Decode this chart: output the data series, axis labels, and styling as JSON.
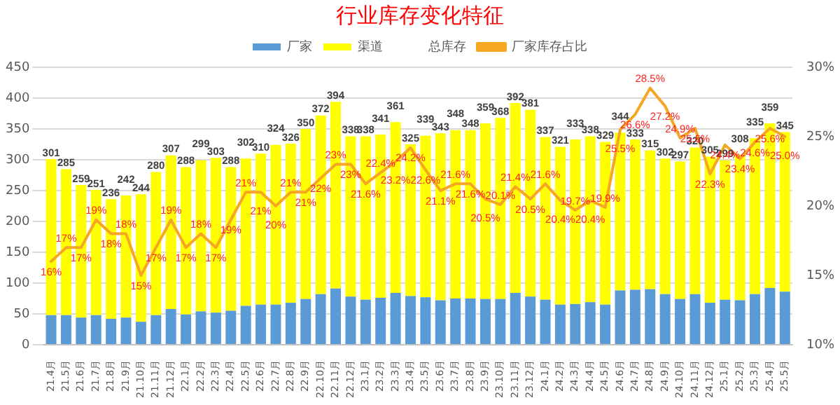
{
  "chart_data": {
    "type": "bar",
    "title": "行业库存变化特征",
    "categories": [
      "21.4月",
      "21.5月",
      "21.6月",
      "21.7月",
      "21.8月",
      "21.9月",
      "21.10月",
      "21.11月",
      "21.12月",
      "22.1月",
      "22.2月",
      "22.3月",
      "22.4月",
      "22.5月",
      "22.6月",
      "22.7月",
      "22.8月",
      "22.9月",
      "22.10月",
      "22.11月",
      "22.12月",
      "23.1月",
      "23.2月",
      "23.3月",
      "23.4月",
      "23.5月",
      "23.6月",
      "23.7月",
      "23.8月",
      "23.9月",
      "23.10月",
      "23.11月",
      "23.12月",
      "24.1月",
      "24.2月",
      "24.3月",
      "24.4月",
      "24.5月",
      "24.6月",
      "24.7月",
      "24.8月",
      "24.9月",
      "24.10月",
      "24.11月",
      "24.12月",
      "25.1月",
      "25.2月",
      "25.3月",
      "25.4月",
      "25.5月"
    ],
    "stacked": true,
    "series": [
      {
        "name": "厂家",
        "color": "#5b9bd5",
        "values": [
          48,
          48,
          44,
          48,
          42,
          44,
          37,
          48,
          58,
          49,
          54,
          52,
          55,
          63,
          65,
          65,
          68,
          74,
          82,
          91,
          78,
          73,
          76,
          84,
          79,
          77,
          72,
          75,
          75,
          74,
          74,
          84,
          78,
          73,
          65,
          66,
          69,
          65,
          88,
          89,
          90,
          82,
          74,
          82,
          68,
          73,
          72,
          82,
          92,
          86
        ]
      },
      {
        "name": "渠道",
        "color": "#ffff00",
        "values": [
          253,
          237,
          215,
          203,
          194,
          198,
          207,
          232,
          249,
          239,
          245,
          251,
          233,
          239,
          245,
          259,
          258,
          276,
          290,
          303,
          260,
          265,
          265,
          277,
          246,
          262,
          271,
          273,
          273,
          285,
          294,
          308,
          303,
          264,
          256,
          267,
          269,
          264,
          256,
          244,
          225,
          220,
          223,
          238,
          237,
          226,
          236,
          253,
          267,
          259
        ]
      },
      {
        "name": "厂家库存占比",
        "type": "line",
        "axis": "y2",
        "color": "#f5a623",
        "marker": "none",
        "values": [
          16,
          17,
          17,
          19,
          18,
          18,
          15,
          17,
          19,
          17,
          18,
          17,
          19,
          21,
          21,
          20,
          21,
          21,
          22,
          23,
          23,
          21.6,
          22.4,
          23.2,
          24.2,
          22.6,
          21.1,
          21.6,
          21.6,
          20.5,
          20.1,
          21.4,
          20.5,
          21.6,
          20.4,
          19.7,
          20.4,
          19.9,
          25.5,
          26.6,
          28.5,
          27.2,
          24.9,
          25.6,
          22.3,
          24.4,
          23.4,
          24.6,
          25.6,
          25.0
        ],
        "value_labels": [
          "16%",
          "17%",
          "17%",
          "19%",
          "18%",
          "18%",
          "15%",
          "17%",
          "19%",
          "17%",
          "18%",
          "17%",
          "19%",
          "21%",
          "21%",
          "20%",
          "21%",
          "21%",
          "22%",
          "23%",
          "23%",
          "21.6%",
          "22.4%",
          "23.2%",
          "24.2%",
          "22.6%",
          "21.1%",
          "21.6%",
          "21.6%",
          "20.5%",
          "20.1%",
          "21.4%",
          "20.5%",
          "21.6%",
          "20.4%",
          "19.7%",
          "20.4%",
          "19.9%",
          "25.5%",
          "26.6%",
          "28.5%",
          "27.2%",
          "24.9%",
          "25.6%",
          "22.3%",
          "24.4%",
          "23.4%",
          "24.6%",
          "25.6%",
          "25.0%"
        ]
      }
    ],
    "totals": [
      "301",
      "285",
      "259",
      "251",
      "236",
      "242",
      "244",
      "280",
      "307",
      "288",
      "299",
      "303",
      "288",
      "302",
      "310",
      "324",
      "326",
      "350",
      "372",
      "394",
      "338",
      "338",
      "341",
      "361",
      "325",
      "339",
      "343",
      "348",
      "348",
      "359",
      "368",
      "392",
      "381",
      "337",
      "321",
      "333",
      "338",
      "329",
      "344",
      "333",
      "315",
      "302",
      "297",
      "320",
      "305",
      "299",
      "308",
      "335",
      "359",
      "345"
    ],
    "annotations": [
      "总库存"
    ],
    "ylim": [
      0,
      450
    ],
    "yticks": [
      0,
      50,
      100,
      150,
      200,
      250,
      300,
      350,
      400,
      450
    ],
    "y2lim": [
      10,
      30
    ],
    "y2ticks": [
      {
        "value": 10,
        "label": "10%"
      },
      {
        "value": 15,
        "label": "15%"
      },
      {
        "value": 20,
        "label": "20%"
      },
      {
        "value": 25,
        "label": "25%"
      },
      {
        "value": 30,
        "label": "30%"
      }
    ],
    "grid": "y",
    "legend": "top"
  }
}
